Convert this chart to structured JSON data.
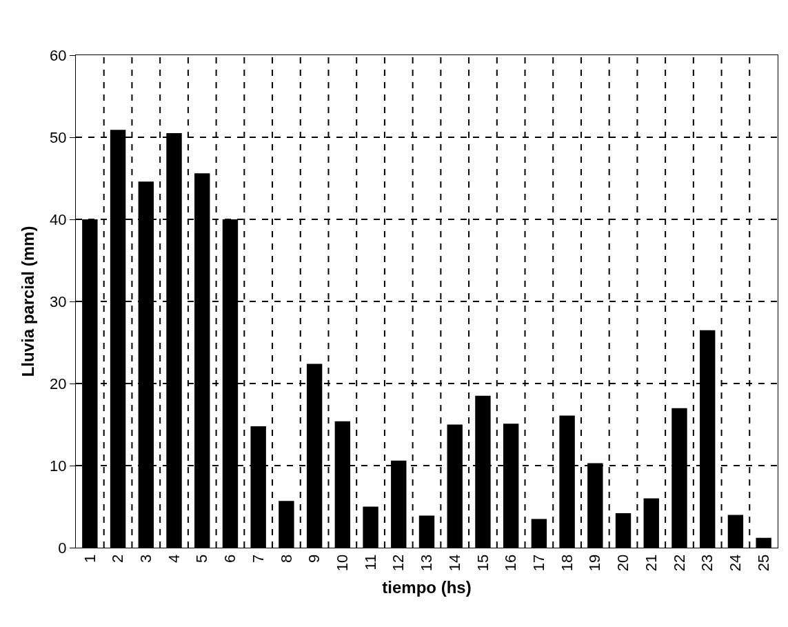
{
  "chart_data": {
    "type": "bar",
    "xlabel": "tiempo (hs)",
    "ylabel": "Lluvia parcial (mm)",
    "categories": [
      "1",
      "2",
      "3",
      "4",
      "5",
      "6",
      "7",
      "8",
      "9",
      "10",
      "11",
      "12",
      "13",
      "14",
      "15",
      "16",
      "17",
      "18",
      "19",
      "20",
      "21",
      "22",
      "23",
      "24",
      "25"
    ],
    "values": [
      40.0,
      50.9,
      44.6,
      50.5,
      45.6,
      40.0,
      14.8,
      5.7,
      22.4,
      15.4,
      5.0,
      10.6,
      3.9,
      15.0,
      18.5,
      15.1,
      3.5,
      16.1,
      10.3,
      4.2,
      6.0,
      17.0,
      26.5,
      4.0,
      1.2
    ],
    "color": "#000000",
    "ylim": [
      0,
      60
    ],
    "yticks": [
      0,
      10,
      20,
      30,
      40,
      50,
      60
    ],
    "grid": true
  }
}
